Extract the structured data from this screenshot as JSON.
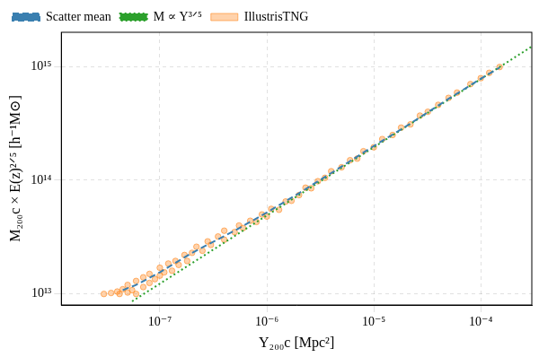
{
  "chart_data": {
    "type": "scatter",
    "x_label": "Y₂₀₀c [Mpc²]",
    "y_label": "M₂₀₀c × E(z)²ᐟ⁵ [h⁻¹M⊙]",
    "log": true,
    "grid": true,
    "legend": "upper left",
    "xlim": [
      1.2e-08,
      0.0003
    ],
    "ylim": [
      8000000000000.0,
      2000000000000000.0
    ],
    "xticks": [
      {
        "value": 1e-07,
        "label": "10⁻⁷"
      },
      {
        "value": 1e-06,
        "label": "10⁻⁶"
      },
      {
        "value": 1e-05,
        "label": "10⁻⁵"
      },
      {
        "value": 0.0001,
        "label": "10⁻⁴"
      }
    ],
    "yticks": [
      {
        "value": 10000000000000.0,
        "label": "10¹³"
      },
      {
        "value": 100000000000000.0,
        "label": "10¹⁴"
      },
      {
        "value": 1000000000000000.0,
        "label": "10¹⁵"
      }
    ],
    "series": [
      {
        "name": "IllustrisTNG",
        "type": "scatter",
        "marker": "circle",
        "color": "#ff7f0e",
        "x": [
          3e-08,
          3.5e-08,
          4e-08,
          4.2e-08,
          4.5e-08,
          5e-08,
          5e-08,
          5.5e-08,
          6e-08,
          6e-08,
          7e-08,
          7e-08,
          8e-08,
          8e-08,
          9e-08,
          1e-07,
          1e-07,
          1.1e-07,
          1.2e-07,
          1.3e-07,
          1.4e-07,
          1.5e-07,
          1.7e-07,
          1.8e-07,
          2e-07,
          2.2e-07,
          2.5e-07,
          2.8e-07,
          3e-07,
          3.5e-07,
          4e-07,
          4e-07,
          5e-07,
          5.5e-07,
          6e-07,
          7e-07,
          8e-07,
          9e-07,
          1e-06,
          1.1e-06,
          1.3e-06,
          1.5e-06,
          1.7e-06,
          2e-06,
          2.3e-06,
          2.6e-06,
          3e-06,
          3.5e-06,
          4e-06,
          5e-06,
          6e-06,
          7e-06,
          8e-06,
          1e-05,
          1.2e-05,
          1.5e-05,
          1.8e-05,
          2.2e-05,
          2.7e-05,
          3.2e-05,
          4e-05,
          5e-05,
          6e-05,
          8e-05,
          0.0001,
          0.00012,
          0.00015
        ],
        "values": [
          10000000000000.0,
          10200000000000.0,
          10500000000000.0,
          10000000000000.0,
          11000000000000.0,
          10300000000000.0,
          12000000000000.0,
          10800000000000.0,
          13000000000000.0,
          10000000000000.0,
          11500000000000.0,
          14000000000000.0,
          12500000000000.0,
          15000000000000.0,
          13500000000000.0,
          14500000000000.0,
          17000000000000.0,
          15500000000000.0,
          18500000000000.0,
          16000000000000.0,
          19500000000000.0,
          18000000000000.0,
          22000000000000.0,
          19500000000000.0,
          23000000000000.0,
          26000000000000.0,
          24000000000000.0,
          29000000000000.0,
          27000000000000.0,
          32000000000000.0,
          30000000000000.0,
          36000000000000.0,
          35000000000000.0,
          40000000000000.0,
          38000000000000.0,
          44000000000000.0,
          43000000000000.0,
          50000000000000.0,
          48000000000000.0,
          56000000000000.0,
          55000000000000.0,
          65000000000000.0,
          66000000000000.0,
          74000000000000.0,
          86000000000000.0,
          85000000000000.0,
          98000000000000.0,
          105000000000000.0,
          120000000000000.0,
          130000000000000.0,
          150000000000000.0,
          155000000000000.0,
          180000000000000.0,
          195000000000000.0,
          230000000000000.0,
          250000000000000.0,
          290000000000000.0,
          310000000000000.0,
          370000000000000.0,
          400000000000000.0,
          460000000000000.0,
          530000000000000.0,
          590000000000000.0,
          700000000000000.0,
          790000000000000.0,
          880000000000000.0,
          990000000000000.0
        ]
      },
      {
        "name": "Scatter mean",
        "type": "line",
        "line_style": "dashed",
        "color": "#3a7fb0",
        "x": [
          4.5e-08,
          6e-08,
          1e-07,
          2e-07,
          5e-07,
          1e-06,
          2e-06,
          5e-06,
          1e-05,
          2e-05,
          5e-05,
          0.0001,
          0.00015
        ],
        "values": [
          10800000000000.0,
          12000000000000.0,
          15500000000000.0,
          23000000000000.0,
          36000000000000.0,
          52000000000000.0,
          77000000000000.0,
          132000000000000.0,
          200000000000000.0,
          298000000000000.0,
          520000000000000.0,
          780000000000000.0,
          980000000000000.0
        ]
      },
      {
        "name": "M ∝ Y³ᐟ⁵",
        "type": "line",
        "line_style": "dotted",
        "color": "#2ca02c",
        "x": [
          5.5e-08,
          0.0003
        ],
        "values": [
          8600000000000.0,
          1500000000000000.0
        ]
      }
    ]
  }
}
